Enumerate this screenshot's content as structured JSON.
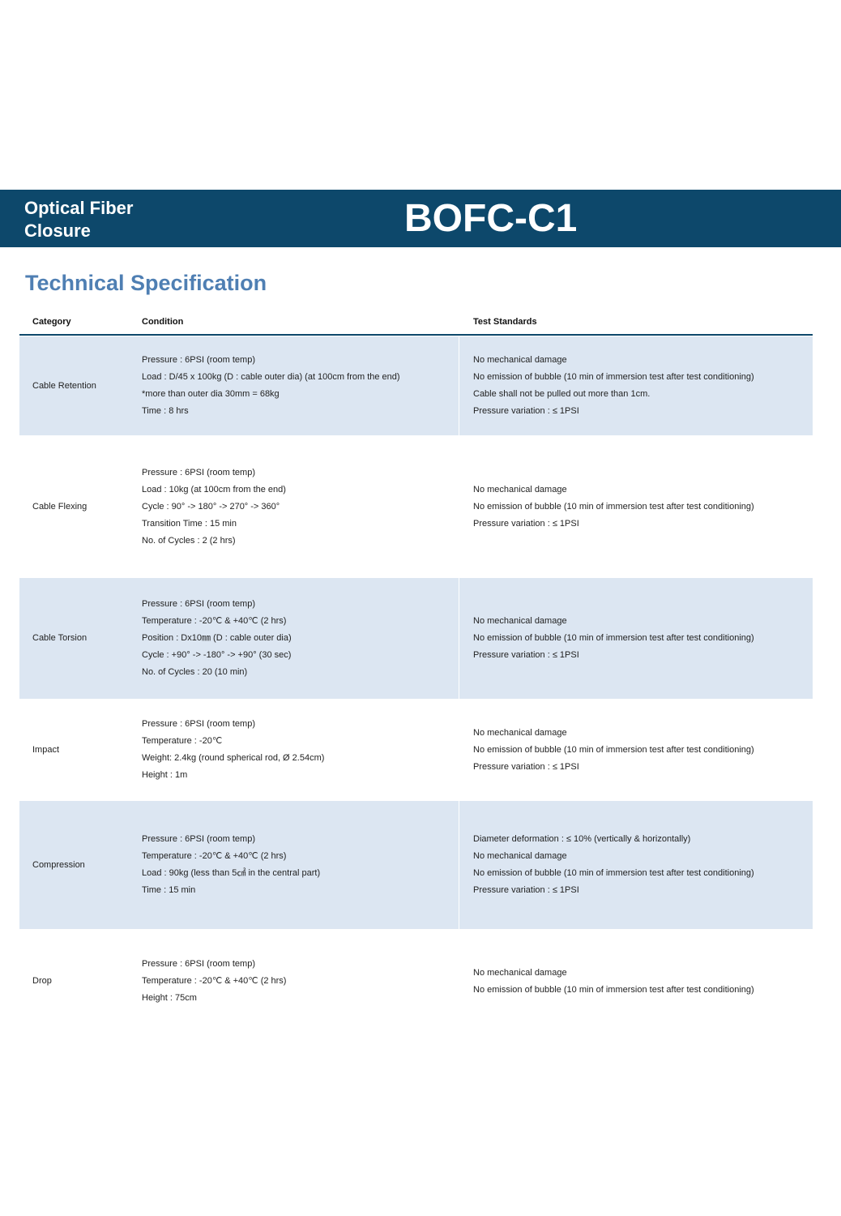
{
  "banner": {
    "product_type": "Optical Fiber Closure",
    "product_type_line1": "Optical Fiber",
    "product_type_line2": "Closure",
    "model": "BOFC-C1",
    "color": "#0d486b"
  },
  "section_title": "Technical Specification",
  "table": {
    "headers": [
      "Category",
      "Condition",
      "Test Standards"
    ],
    "rows": [
      {
        "category": "Cable Retention",
        "condition": [
          "Pressure : 6PSI (room temp)",
          "Load : D/45 x 100kg (D : cable outer dia) (at 100cm from the end)",
          "*more than outer dia 30mm = 68kg",
          "Time : 8 hrs"
        ],
        "standards": [
          "No mechanical damage",
          "No emission of bubble (10 min of immersion test after test conditioning)",
          "Cable shall not be pulled out more than 1cm.",
          "Pressure variation : ≤ 1PSI"
        ]
      },
      {
        "category": "Cable Flexing",
        "condition": [
          "Pressure : 6PSI (room temp)",
          "Load : 10kg (at 100cm from the end)",
          "Cycle : 90° -> 180° -> 270° -> 360°",
          "Transition Time : 15 min",
          "No. of Cycles : 2 (2 hrs)"
        ],
        "standards": [
          "No mechanical damage",
          "No emission of bubble (10 min of immersion test after test conditioning)",
          "Pressure variation : ≤ 1PSI"
        ]
      },
      {
        "category": "Cable Torsion",
        "condition": [
          "Pressure : 6PSI (room temp)",
          "Temperature : -20℃ & +40℃ (2 hrs)",
          "Position : Dx10㎜ (D : cable outer dia)",
          "Cycle : +90° -> -180° -> +90° (30 sec)",
          "No. of Cycles : 20 (10 min)"
        ],
        "standards": [
          "No mechanical damage",
          "No emission of bubble (10 min of immersion test after test conditioning)",
          "Pressure variation : ≤ 1PSI"
        ]
      },
      {
        "category": "Impact",
        "condition": [
          "Pressure : 6PSI (room temp)",
          "Temperature : -20℃",
          "Weight: 2.4kg (round spherical rod, Ø 2.54cm)",
          "Height : 1m"
        ],
        "standards": [
          "No mechanical damage",
          "No emission of bubble (10 min of immersion test after test conditioning)",
          "Pressure variation : ≤ 1PSI"
        ]
      },
      {
        "category": "Compression",
        "condition": [
          "Pressure : 6PSI (room temp)",
          "Temperature : -20℃ & +40℃ (2 hrs)",
          "Load : 90kg (less than 5㎠ in the central part)",
          "Time : 15 min"
        ],
        "standards": [
          "Diameter deformation : ≤ 10% (vertically & horizontally)",
          "No mechanical damage",
          "No emission of bubble (10 min of immersion test after test conditioning)",
          "Pressure variation : ≤ 1PSI"
        ]
      },
      {
        "category": "Drop",
        "condition": [
          "Pressure : 6PSI (room temp)",
          "Temperature : -20℃ & +40℃ (2 hrs)",
          "Height : 75cm"
        ],
        "standards": [
          "No mechanical damage",
          "No emission of bubble (10 min of immersion test after test conditioning)"
        ]
      }
    ]
  }
}
